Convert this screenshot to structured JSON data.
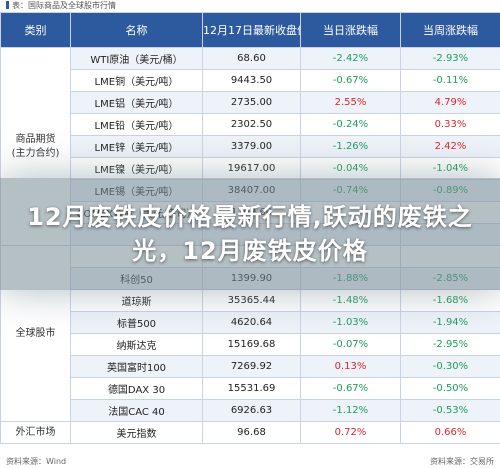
{
  "table_title": "表：国际商品及全球股市行情",
  "headers": [
    "类别",
    "名称",
    "12月17日最新收盘价",
    "当日涨跌幅",
    "当周涨跌幅"
  ],
  "groups": [
    {
      "category": "商品期货\n(主力合约)",
      "rows": [
        {
          "name": "WTI原油（美元/桶）",
          "price": "68.60",
          "day": "-2.42%",
          "week": "-2.93%",
          "day_dir": "neg",
          "week_dir": "neg"
        },
        {
          "name": "LME铜（美元/吨）",
          "price": "9443.50",
          "day": "-0.67%",
          "week": "-0.11%",
          "day_dir": "neg",
          "week_dir": "neg"
        },
        {
          "name": "LME铝（美元/吨）",
          "price": "2735.00",
          "day": "2.55%",
          "week": "4.79%",
          "day_dir": "pos",
          "week_dir": "pos"
        },
        {
          "name": "LME铅（美元/吨）",
          "price": "2302.50",
          "day": "-0.24%",
          "week": "0.33%",
          "day_dir": "neg",
          "week_dir": "pos"
        },
        {
          "name": "LME锌（美元/吨）",
          "price": "3379.00",
          "day": "-1.26%",
          "week": "2.42%",
          "day_dir": "neg",
          "week_dir": "pos"
        },
        {
          "name": "LME镍（美元/吨）",
          "price": "19617.00",
          "day": "-0.04%",
          "week": "-1.04%",
          "day_dir": "neg",
          "week_dir": "neg"
        },
        {
          "name": "LME锡（美元/吨）",
          "price": "38407.00",
          "day": "-0.74%",
          "week": "-0.89%",
          "day_dir": "neg",
          "week_dir": "neg"
        },
        {
          "name": "COMEX黄金（美元/盎司）",
          "price": "1799.60",
          "day": "",
          "week": "",
          "day_dir": "neu",
          "week_dir": "neu"
        },
        {
          "name": "",
          "price": "",
          "day": "",
          "week": "",
          "day_dir": "neu",
          "week_dir": "neu"
        }
      ]
    },
    {
      "category": "全球股市",
      "rows": [
        {
          "name": "",
          "price": "",
          "day": "",
          "week": "",
          "day_dir": "neu",
          "week_dir": "neu"
        },
        {
          "name": "科创50",
          "price": "1399.90",
          "day": "-1.88%",
          "week": "-2.85%",
          "day_dir": "neg",
          "week_dir": "neg"
        },
        {
          "name": "道琼斯",
          "price": "35365.44",
          "day": "-1.48%",
          "week": "-1.68%",
          "day_dir": "neg",
          "week_dir": "neg"
        },
        {
          "name": "标普500",
          "price": "4620.64",
          "day": "-1.03%",
          "week": "-1.94%",
          "day_dir": "neg",
          "week_dir": "neg"
        },
        {
          "name": "纳斯达克",
          "price": "15169.68",
          "day": "-0.07%",
          "week": "-2.95%",
          "day_dir": "neg",
          "week_dir": "neg"
        },
        {
          "name": "英国富时100",
          "price": "7269.92",
          "day": "0.13%",
          "week": "-0.30%",
          "day_dir": "pos",
          "week_dir": "neg"
        },
        {
          "name": "德国DAX 30",
          "price": "15531.69",
          "day": "-0.67%",
          "week": "-0.50%",
          "day_dir": "neg",
          "week_dir": "neg"
        },
        {
          "name": "法国CAC 40",
          "price": "6926.63",
          "day": "-1.12%",
          "week": "-0.53%",
          "day_dir": "neg",
          "week_dir": "neg"
        }
      ]
    },
    {
      "category": "外汇市场",
      "rows": [
        {
          "name": "美元指数",
          "price": "96.68",
          "day": "0.72%",
          "week": "0.66%",
          "day_dir": "pos",
          "week_dir": "pos"
        }
      ]
    }
  ],
  "banner": "12月废铁皮价格最新行情,跃动的废铁之光，12月废铁皮价格",
  "source_left": "资料来源：Wind",
  "source_right": "资料来源：交易所"
}
